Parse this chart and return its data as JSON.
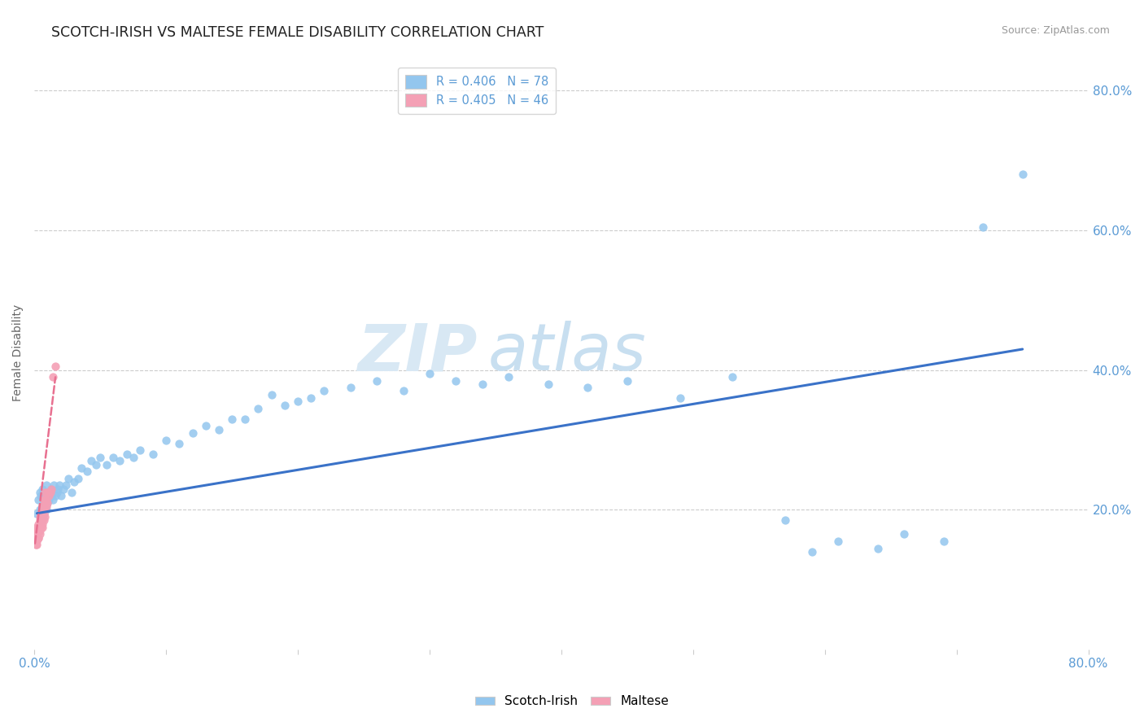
{
  "title": "SCOTCH-IRISH VS MALTESE FEMALE DISABILITY CORRELATION CHART",
  "source": "Source: ZipAtlas.com",
  "ylabel": "Female Disability",
  "xlim": [
    0.0,
    0.8
  ],
  "ylim": [
    0.0,
    0.85
  ],
  "xtick_pos": [
    0.0,
    0.1,
    0.2,
    0.3,
    0.4,
    0.5,
    0.6,
    0.7,
    0.8
  ],
  "xticklabels": [
    "0.0%",
    "",
    "",
    "",
    "",
    "",
    "",
    "",
    "80.0%"
  ],
  "ytick_pos": [
    0.2,
    0.4,
    0.6,
    0.8
  ],
  "ytick_labels": [
    "20.0%",
    "40.0%",
    "60.0%",
    "80.0%"
  ],
  "scotch_irish_color": "#93C6EE",
  "maltese_color": "#F4A0B5",
  "scotch_irish_line_color": "#3A72C8",
  "maltese_line_color": "#E87090",
  "maltese_line_dash": [
    6,
    4
  ],
  "R_scotch": 0.406,
  "N_scotch": 78,
  "R_maltese": 0.405,
  "N_maltese": 46,
  "watermark_zip": "ZIP",
  "watermark_atlas": "atlas",
  "si_x": [
    0.002,
    0.003,
    0.004,
    0.004,
    0.005,
    0.005,
    0.006,
    0.006,
    0.007,
    0.007,
    0.008,
    0.008,
    0.009,
    0.009,
    0.01,
    0.01,
    0.011,
    0.012,
    0.013,
    0.013,
    0.014,
    0.015,
    0.016,
    0.017,
    0.018,
    0.019,
    0.02,
    0.022,
    0.024,
    0.026,
    0.028,
    0.03,
    0.033,
    0.036,
    0.04,
    0.043,
    0.047,
    0.05,
    0.055,
    0.06,
    0.065,
    0.07,
    0.075,
    0.08,
    0.09,
    0.1,
    0.11,
    0.12,
    0.13,
    0.14,
    0.15,
    0.16,
    0.17,
    0.18,
    0.19,
    0.2,
    0.21,
    0.22,
    0.24,
    0.26,
    0.28,
    0.3,
    0.32,
    0.34,
    0.36,
    0.39,
    0.42,
    0.45,
    0.49,
    0.53,
    0.57,
    0.59,
    0.61,
    0.64,
    0.66,
    0.69,
    0.72,
    0.75
  ],
  "si_y": [
    0.195,
    0.215,
    0.2,
    0.225,
    0.185,
    0.22,
    0.205,
    0.23,
    0.195,
    0.21,
    0.215,
    0.225,
    0.2,
    0.235,
    0.21,
    0.22,
    0.215,
    0.225,
    0.22,
    0.23,
    0.215,
    0.235,
    0.22,
    0.225,
    0.23,
    0.235,
    0.22,
    0.23,
    0.235,
    0.245,
    0.225,
    0.24,
    0.245,
    0.26,
    0.255,
    0.27,
    0.265,
    0.275,
    0.265,
    0.275,
    0.27,
    0.28,
    0.275,
    0.285,
    0.28,
    0.3,
    0.295,
    0.31,
    0.32,
    0.315,
    0.33,
    0.33,
    0.345,
    0.365,
    0.35,
    0.355,
    0.36,
    0.37,
    0.375,
    0.385,
    0.37,
    0.395,
    0.385,
    0.38,
    0.39,
    0.38,
    0.375,
    0.385,
    0.36,
    0.39,
    0.185,
    0.14,
    0.155,
    0.145,
    0.165,
    0.155,
    0.605,
    0.68
  ],
  "ma_x": [
    0.0005,
    0.001,
    0.001,
    0.001,
    0.001,
    0.002,
    0.002,
    0.002,
    0.002,
    0.002,
    0.003,
    0.003,
    0.003,
    0.003,
    0.003,
    0.004,
    0.004,
    0.004,
    0.004,
    0.004,
    0.005,
    0.005,
    0.005,
    0.005,
    0.006,
    0.006,
    0.006,
    0.006,
    0.006,
    0.007,
    0.007,
    0.007,
    0.007,
    0.008,
    0.008,
    0.008,
    0.008,
    0.009,
    0.009,
    0.01,
    0.01,
    0.011,
    0.012,
    0.013,
    0.014,
    0.016
  ],
  "ma_y": [
    0.155,
    0.15,
    0.165,
    0.155,
    0.17,
    0.15,
    0.16,
    0.17,
    0.155,
    0.175,
    0.16,
    0.17,
    0.18,
    0.16,
    0.175,
    0.165,
    0.175,
    0.185,
    0.17,
    0.19,
    0.175,
    0.185,
    0.195,
    0.175,
    0.18,
    0.195,
    0.185,
    0.205,
    0.175,
    0.185,
    0.195,
    0.205,
    0.215,
    0.19,
    0.2,
    0.215,
    0.225,
    0.205,
    0.215,
    0.21,
    0.225,
    0.22,
    0.225,
    0.23,
    0.39,
    0.405
  ],
  "si_line_x0": 0.002,
  "si_line_x1": 0.75,
  "si_line_y0": 0.195,
  "si_line_y1": 0.43,
  "ma_line_x0": 0.0005,
  "ma_line_x1": 0.016,
  "ma_line_y0": 0.152,
  "ma_line_y1": 0.39
}
